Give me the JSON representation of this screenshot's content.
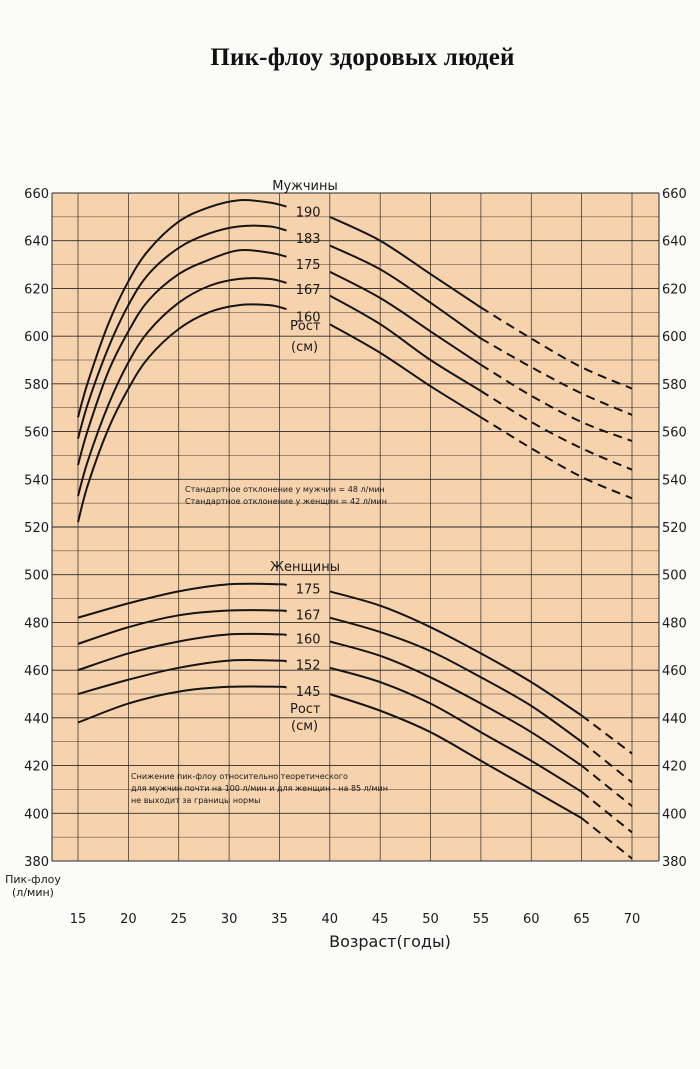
{
  "title": "Пик-флоу здоровых людей",
  "chart_data": {
    "type": "line",
    "xlabel": "Возраст(годы)",
    "ylabel": [
      "Пик-флоу",
      "(л/мин)"
    ],
    "xlim": [
      15,
      70
    ],
    "ylim": [
      380,
      660
    ],
    "x_ticks": [
      15,
      20,
      25,
      30,
      35,
      40,
      45,
      50,
      55,
      60,
      65,
      70
    ],
    "y_ticks": [
      380,
      400,
      420,
      440,
      460,
      480,
      500,
      520,
      540,
      560,
      580,
      600,
      620,
      640,
      660
    ],
    "grid": true,
    "background_color": "#f6d3ad",
    "grid_color": "#2a2a2a",
    "line_color": "#151515",
    "men": {
      "heading": "Мужчины",
      "height_label": [
        "Рост",
        "(см)"
      ],
      "solid_until": 55,
      "series": [
        {
          "name": "190",
          "points": [
            [
              15,
              566
            ],
            [
              16,
              581
            ],
            [
              18,
              605
            ],
            [
              20,
              623
            ],
            [
              22,
              636
            ],
            [
              25,
              648
            ],
            [
              28,
              654
            ],
            [
              31,
              657
            ],
            [
              34,
              656
            ],
            [
              36,
              654
            ],
            [
              40,
              650
            ],
            [
              45,
              640
            ],
            [
              50,
              626
            ],
            [
              55,
              612
            ],
            [
              60,
              599
            ],
            [
              65,
              587
            ],
            [
              70,
              578
            ]
          ]
        },
        {
          "name": "183",
          "points": [
            [
              15,
              557
            ],
            [
              16,
              572
            ],
            [
              18,
              595
            ],
            [
              20,
              613
            ],
            [
              22,
              626
            ],
            [
              25,
              637
            ],
            [
              28,
              643
            ],
            [
              31,
              646
            ],
            [
              34,
              646
            ],
            [
              36,
              644
            ],
            [
              40,
              638
            ],
            [
              45,
              628
            ],
            [
              50,
              614
            ],
            [
              55,
              599
            ],
            [
              60,
              587
            ],
            [
              65,
              576
            ],
            [
              70,
              567
            ]
          ]
        },
        {
          "name": "175",
          "points": [
            [
              15,
              546
            ],
            [
              16,
              561
            ],
            [
              18,
              585
            ],
            [
              20,
              602
            ],
            [
              22,
              615
            ],
            [
              25,
              626
            ],
            [
              28,
              632
            ],
            [
              31,
              636
            ],
            [
              34,
              635
            ],
            [
              36,
              633
            ],
            [
              40,
              627
            ],
            [
              45,
              616
            ],
            [
              50,
              602
            ],
            [
              55,
              588
            ],
            [
              60,
              575
            ],
            [
              65,
              564
            ],
            [
              70,
              556
            ]
          ]
        },
        {
          "name": "167",
          "points": [
            [
              15,
              533
            ],
            [
              16,
              548
            ],
            [
              18,
              571
            ],
            [
              20,
              589
            ],
            [
              22,
              602
            ],
            [
              25,
              614
            ],
            [
              28,
              621
            ],
            [
              31,
              624
            ],
            [
              34,
              624
            ],
            [
              36,
              622
            ],
            [
              40,
              617
            ],
            [
              45,
              605
            ],
            [
              50,
              590
            ],
            [
              55,
              577
            ],
            [
              60,
              564
            ],
            [
              65,
              553
            ],
            [
              70,
              544
            ]
          ]
        },
        {
          "name": "160",
          "points": [
            [
              15,
              522
            ],
            [
              16,
              538
            ],
            [
              18,
              561
            ],
            [
              20,
              578
            ],
            [
              22,
              591
            ],
            [
              25,
              603
            ],
            [
              28,
              610
            ],
            [
              31,
              613
            ],
            [
              34,
              613
            ],
            [
              36,
              611
            ],
            [
              40,
              605
            ],
            [
              45,
              593
            ],
            [
              50,
              579
            ],
            [
              55,
              566
            ],
            [
              60,
              553
            ],
            [
              65,
              541
            ],
            [
              70,
              532
            ]
          ]
        }
      ]
    },
    "women": {
      "heading": "Женщины",
      "height_label": [
        "Рост",
        "(см)"
      ],
      "solid_until": 65,
      "series": [
        {
          "name": "175",
          "points": [
            [
              15,
              482
            ],
            [
              20,
              488
            ],
            [
              25,
              493
            ],
            [
              30,
              496
            ],
            [
              35,
              496
            ],
            [
              40,
              493
            ],
            [
              45,
              487
            ],
            [
              50,
              478
            ],
            [
              55,
              467
            ],
            [
              60,
              455
            ],
            [
              65,
              441
            ],
            [
              70,
              425
            ]
          ]
        },
        {
          "name": "167",
          "points": [
            [
              15,
              471
            ],
            [
              20,
              478
            ],
            [
              25,
              483
            ],
            [
              30,
              485
            ],
            [
              35,
              485
            ],
            [
              40,
              482
            ],
            [
              45,
              476
            ],
            [
              50,
              468
            ],
            [
              55,
              457
            ],
            [
              60,
              445
            ],
            [
              65,
              430
            ],
            [
              70,
              413
            ]
          ]
        },
        {
          "name": "160",
          "points": [
            [
              15,
              460
            ],
            [
              20,
              467
            ],
            [
              25,
              472
            ],
            [
              30,
              475
            ],
            [
              35,
              475
            ],
            [
              40,
              472
            ],
            [
              45,
              466
            ],
            [
              50,
              457
            ],
            [
              55,
              446
            ],
            [
              60,
              434
            ],
            [
              65,
              420
            ],
            [
              70,
              403
            ]
          ]
        },
        {
          "name": "152",
          "points": [
            [
              15,
              450
            ],
            [
              20,
              456
            ],
            [
              25,
              461
            ],
            [
              30,
              464
            ],
            [
              35,
              464
            ],
            [
              40,
              461
            ],
            [
              45,
              455
            ],
            [
              50,
              446
            ],
            [
              55,
              434
            ],
            [
              60,
              422
            ],
            [
              65,
              409
            ],
            [
              70,
              392
            ]
          ]
        },
        {
          "name": "145",
          "points": [
            [
              15,
              438
            ],
            [
              20,
              446
            ],
            [
              25,
              451
            ],
            [
              30,
              453
            ],
            [
              35,
              453
            ],
            [
              40,
              450
            ],
            [
              45,
              443
            ],
            [
              50,
              434
            ],
            [
              55,
              422
            ],
            [
              60,
              410
            ],
            [
              65,
              398
            ],
            [
              70,
              381
            ]
          ]
        }
      ]
    },
    "annotations": {
      "std_dev": [
        "Стандартное отклонение у мужчин = 48 л/мин",
        "Стандартное отклонение у женщин = 42 л/мин"
      ],
      "note": [
        "Снижение пик-флоу относительно теоретического",
        "для мужчин почти на 100 л/мин и для женщин - на 85 л/мин",
        "не выходит за границы нормы"
      ]
    }
  }
}
